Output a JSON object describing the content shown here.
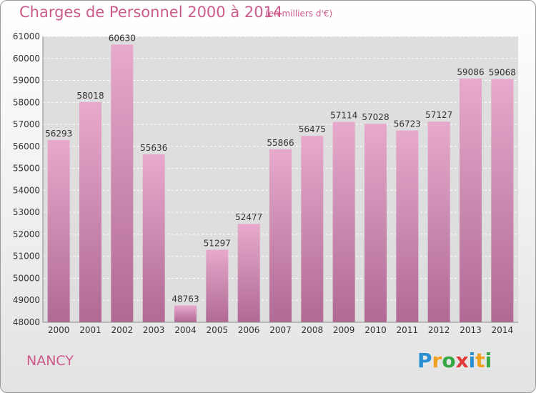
{
  "title": "Charges de Personnel 2000 à 2014",
  "subtitle": "(en milliers d'€)",
  "city": "NANCY",
  "logo": {
    "text": "Proxiti",
    "letters": [
      {
        "ch": "P",
        "color": "#2a8fd0"
      },
      {
        "ch": "r",
        "color": "#f0a020"
      },
      {
        "ch": "o",
        "color": "#35a845"
      },
      {
        "ch": "x",
        "color": "#e03a3a"
      },
      {
        "ch": "i",
        "color": "#2a8fd0"
      },
      {
        "ch": "t",
        "color": "#f0a020"
      },
      {
        "ch": "i",
        "color": "#35a845"
      }
    ]
  },
  "colors": {
    "accent": "#cc5a8a",
    "bar_top": "#e7a9cc",
    "bar_bottom": "#b06a94",
    "grid": "#ffffff",
    "axis_text": "#333333"
  },
  "chart_data": {
    "type": "bar",
    "categories": [
      "2000",
      "2001",
      "2002",
      "2003",
      "2004",
      "2005",
      "2006",
      "2007",
      "2008",
      "2009",
      "2010",
      "2011",
      "2012",
      "2013",
      "2014"
    ],
    "values": [
      56293,
      58018,
      60630,
      55636,
      48763,
      51297,
      52477,
      55866,
      56475,
      57114,
      57028,
      56723,
      57127,
      59086,
      59068
    ],
    "ylim": [
      48000,
      61000
    ],
    "yticks": [
      48000,
      49000,
      50000,
      51000,
      52000,
      53000,
      54000,
      55000,
      56000,
      57000,
      58000,
      59000,
      60000,
      61000
    ],
    "grid": true,
    "data_labels": true
  }
}
